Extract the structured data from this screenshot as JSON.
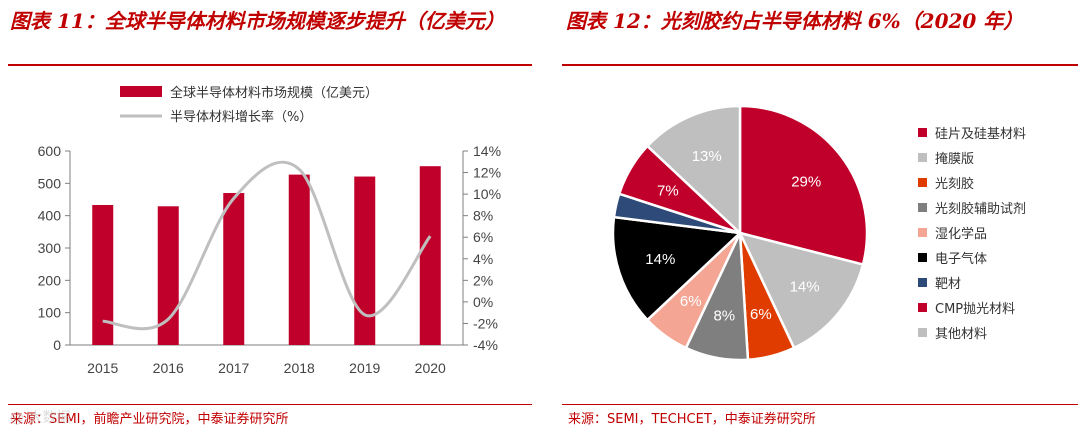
{
  "left": {
    "title": "图表 11：全球半导体材料市场规模逐步提升（亿美元）",
    "source": "来源：SEMI，前瞻产业研究院，中泰证券研究所",
    "watermark": "@ 大数据"
  },
  "right": {
    "title": "图表 12：光刻胶约占半导体材料 6%（2020 年）",
    "source": "来源：SEMI，TECHCET，中泰证券研究所"
  },
  "colors": {
    "accent": "#c00000",
    "bar": "#c0002a",
    "line": "#bfbfbf"
  },
  "chart_data": [
    {
      "type": "bar",
      "title": "全球半导体材料市场规模逐步提升（亿美元）",
      "categories": [
        "2015",
        "2016",
        "2017",
        "2018",
        "2019",
        "2020"
      ],
      "series": [
        {
          "name": "全球半导体材料市场规模（亿美元）",
          "type": "bar",
          "axis": "left",
          "values": [
            433,
            429,
            470,
            527,
            521,
            553
          ]
        },
        {
          "name": "半导体材料增长率（%）",
          "type": "line",
          "axis": "right",
          "values": [
            -1.8,
            -1.6,
            9.6,
            12.3,
            -1.2,
            6.1
          ]
        }
      ],
      "ylim": [
        0,
        600
      ],
      "yticks": [
        "0",
        "100",
        "200",
        "300",
        "400",
        "500",
        "600"
      ],
      "y2lim": [
        -4,
        14
      ],
      "y2ticks": [
        "-4%",
        "-2%",
        "0%",
        "2%",
        "4%",
        "6%",
        "8%",
        "10%",
        "12%",
        "14%"
      ],
      "legend": "top-left"
    },
    {
      "type": "pie",
      "title": "光刻胶约占半导体材料 6%（2020 年）",
      "slices": [
        {
          "name": "硅片及硅基材料",
          "value": 29,
          "label": "29%",
          "color": "#c0002a",
          "label_color": "#ffffff"
        },
        {
          "name": "掩膜版",
          "value": 14,
          "label": "14%",
          "color": "#bfbfbf",
          "label_color": "#ffffff"
        },
        {
          "name": "光刻胶",
          "value": 6,
          "label": "6%",
          "color": "#e03c00",
          "label_color": "#ffffff"
        },
        {
          "name": "光刻胶辅助试剂",
          "value": 8,
          "label": "8%",
          "color": "#7f7f7f",
          "label_color": "#ffffff"
        },
        {
          "name": "湿化学品",
          "value": 6,
          "label": "6%",
          "color": "#f4a593",
          "label_color": "#ffffff"
        },
        {
          "name": "电子气体",
          "value": 14,
          "label": "14%",
          "color": "#000000",
          "label_color": "#ffffff"
        },
        {
          "name": "靶材",
          "value": 3,
          "label": "",
          "color": "#2e4a78",
          "label_color": "#ffffff"
        },
        {
          "name": "CMP抛光材料",
          "value": 7,
          "label": "7%",
          "color": "#c0002a",
          "label_color": "#ffffff"
        },
        {
          "name": "其他材料",
          "value": 13,
          "label": "13%",
          "color": "#bfbfbf",
          "label_color": "#ffffff"
        }
      ],
      "legend": "right"
    }
  ]
}
